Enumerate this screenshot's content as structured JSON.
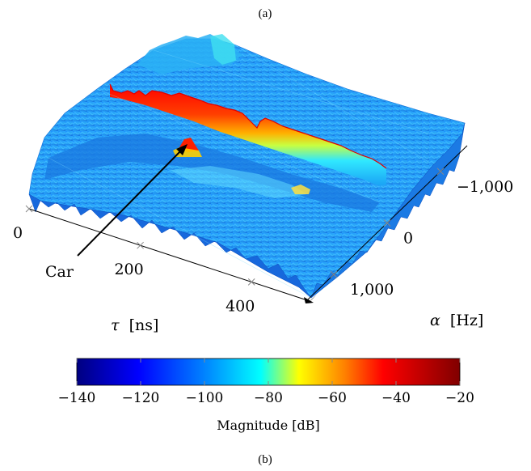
{
  "figure": {
    "label_top": "(a)",
    "label_bottom": "(b)"
  },
  "chart_data": {
    "type": "surface3d",
    "title": "",
    "x_axis": {
      "label_symbol": "τ",
      "label_unit": "[ns]",
      "range": [
        0,
        500
      ],
      "ticks": [
        0,
        200,
        400
      ],
      "tick_labels": [
        "0",
        "200",
        "400"
      ]
    },
    "y_axis": {
      "label_symbol": "α",
      "label_unit": "[Hz]",
      "range": [
        -1500,
        1500
      ],
      "ticks": [
        -1000,
        0,
        1000
      ],
      "tick_labels": [
        "−1,000",
        "0",
        "1,000"
      ]
    },
    "z_axis": {
      "label": "Magnitude [dB]",
      "range": [
        -140,
        -20
      ]
    },
    "colorbar": {
      "ticks": [
        -140,
        -120,
        -100,
        -80,
        -60,
        -40,
        -20
      ],
      "tick_labels": [
        "−140",
        "−120",
        "−100",
        "−80",
        "−60",
        "−40",
        "−20"
      ],
      "label": "Magnitude [dB]",
      "colormap": [
        "#000080",
        "#0000ff",
        "#0080ff",
        "#00ffff",
        "#ffff00",
        "#ff8000",
        "#ff0000",
        "#800000"
      ]
    },
    "features": [
      {
        "type": "ridge",
        "along": "tau",
        "alpha": 0,
        "peak_db": -40,
        "color": "#ff0000"
      },
      {
        "type": "ridge",
        "along": "alpha",
        "tau": 80,
        "peak_db": -90
      },
      {
        "type": "ridge",
        "along": "alpha",
        "tau": 250,
        "peak_db": -95
      }
    ],
    "annotations": [
      {
        "text": "Car",
        "target_tau": 190,
        "target_alpha": -350,
        "arrow": true
      }
    ]
  }
}
